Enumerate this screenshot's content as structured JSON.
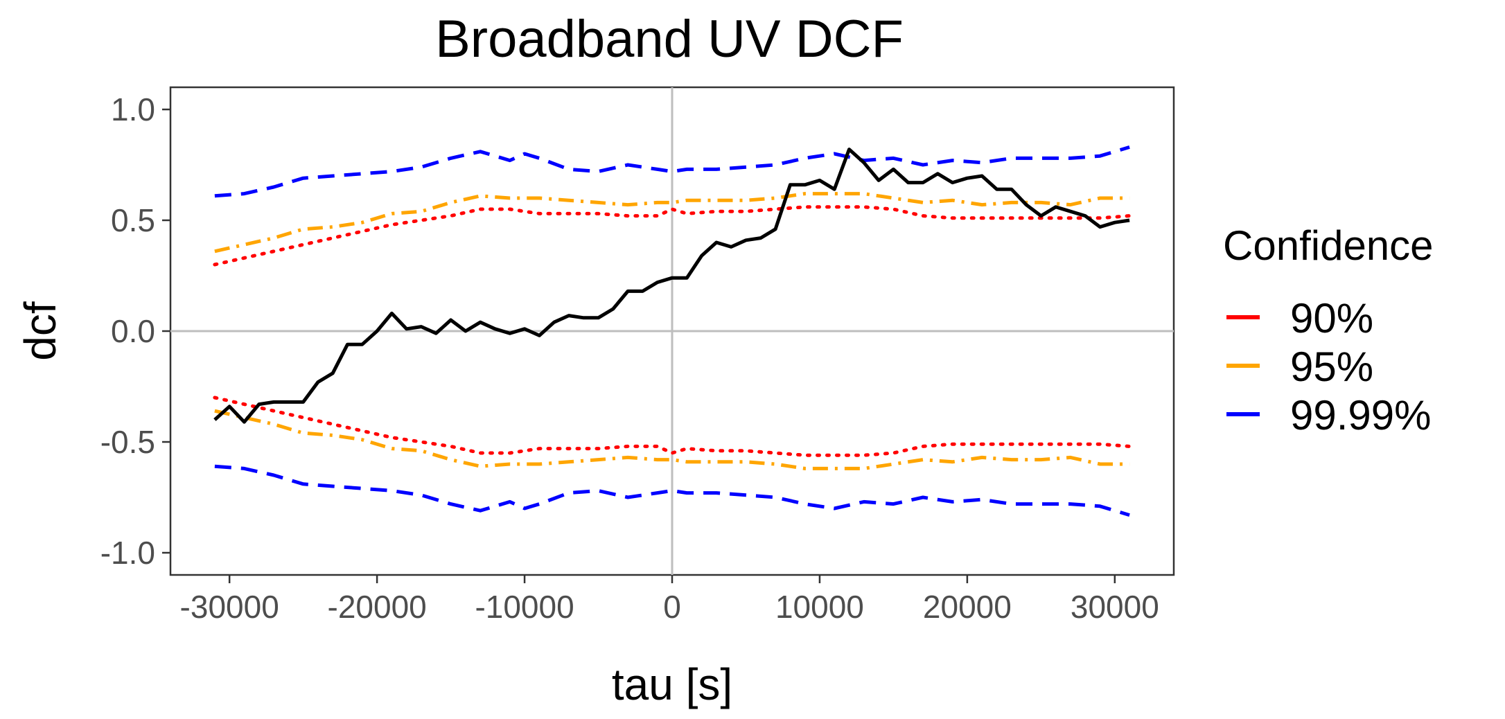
{
  "chart_data": {
    "type": "line",
    "title": "Broadband UV DCF",
    "xlabel": "tau [s]",
    "ylabel": "dcf",
    "xlim": [
      -34000,
      34000
    ],
    "ylim": [
      -1.1,
      1.1
    ],
    "xticks": [
      -30000,
      -20000,
      -10000,
      0,
      10000,
      20000,
      30000
    ],
    "xtick_labels": [
      "-30000",
      "-20000",
      "-10000",
      "0",
      "10000",
      "20000",
      "30000"
    ],
    "yticks": [
      1.0,
      0.5,
      0.0,
      -0.5,
      -1.0
    ],
    "ytick_labels": [
      "1.0",
      "0.5",
      "0.0",
      "-0.5",
      "-1.0"
    ],
    "grid": false,
    "reference_lines": {
      "x": 0,
      "y": 0,
      "color": "#bebebe"
    },
    "legend": {
      "title": "Confidence",
      "position": "right",
      "entries": [
        {
          "label": "90%",
          "color": "#ff0000"
        },
        {
          "label": "95%",
          "color": "#ffa500"
        },
        {
          "label": "99.99%",
          "color": "#0000ff"
        }
      ]
    },
    "series": [
      {
        "color": "#000000",
        "line_style": "solid",
        "x": [
          -31000,
          -30000,
          -29000,
          -28000,
          -27000,
          -26000,
          -25000,
          -24000,
          -23000,
          -22000,
          -21000,
          -20000,
          -19000,
          -18000,
          -17000,
          -16000,
          -15000,
          -14000,
          -13000,
          -12000,
          -11000,
          -10000,
          -9000,
          -8000,
          -7000,
          -6000,
          -5000,
          -4000,
          -3000,
          -2000,
          -1000,
          0,
          1000,
          2000,
          3000,
          4000,
          5000,
          6000,
          7000,
          8000,
          9000,
          10000,
          11000,
          12000,
          13000,
          14000,
          15000,
          16000,
          17000,
          18000,
          19000,
          20000,
          21000,
          22000,
          23000,
          24000,
          25000,
          26000,
          27000,
          28000,
          29000,
          30000,
          31000
        ],
        "y": [
          -0.4,
          -0.34,
          -0.41,
          -0.33,
          -0.32,
          -0.32,
          -0.32,
          -0.23,
          -0.19,
          -0.06,
          -0.06,
          0.0,
          0.08,
          0.01,
          0.02,
          -0.01,
          0.05,
          0.0,
          0.04,
          0.01,
          -0.01,
          0.01,
          -0.02,
          0.04,
          0.07,
          0.06,
          0.06,
          0.1,
          0.18,
          0.18,
          0.22,
          0.24,
          0.24,
          0.34,
          0.4,
          0.38,
          0.41,
          0.42,
          0.46,
          0.66,
          0.66,
          0.68,
          0.64,
          0.82,
          0.76,
          0.68,
          0.73,
          0.67,
          0.67,
          0.71,
          0.67,
          0.69,
          0.7,
          0.64,
          0.64,
          0.57,
          0.52,
          0.56,
          0.54,
          0.52,
          0.47,
          0.49,
          0.5
        ]
      },
      {
        "name": "90%",
        "color": "#ff0000",
        "line_style": "dotted",
        "x": [
          -31000,
          -29000,
          -27000,
          -25000,
          -23000,
          -21000,
          -19000,
          -17000,
          -15000,
          -13000,
          -11000,
          -9000,
          -7000,
          -5000,
          -3000,
          -1000,
          0,
          1000,
          3000,
          5000,
          7000,
          9000,
          11000,
          13000,
          15000,
          17000,
          19000,
          21000,
          23000,
          25000,
          27000,
          29000,
          31000
        ],
        "y_upper": [
          0.3,
          0.33,
          0.36,
          0.39,
          0.42,
          0.45,
          0.48,
          0.5,
          0.52,
          0.55,
          0.55,
          0.53,
          0.53,
          0.53,
          0.52,
          0.52,
          0.55,
          0.53,
          0.54,
          0.54,
          0.55,
          0.56,
          0.56,
          0.56,
          0.55,
          0.52,
          0.51,
          0.51,
          0.51,
          0.51,
          0.51,
          0.51,
          0.52
        ],
        "y_lower": [
          -0.3,
          -0.33,
          -0.36,
          -0.39,
          -0.42,
          -0.45,
          -0.48,
          -0.5,
          -0.52,
          -0.55,
          -0.55,
          -0.53,
          -0.53,
          -0.53,
          -0.52,
          -0.52,
          -0.55,
          -0.53,
          -0.54,
          -0.54,
          -0.55,
          -0.56,
          -0.56,
          -0.56,
          -0.55,
          -0.52,
          -0.51,
          -0.51,
          -0.51,
          -0.51,
          -0.51,
          -0.51,
          -0.52
        ]
      },
      {
        "name": "95%",
        "color": "#ffa500",
        "line_style": "dashdot",
        "x": [
          -31000,
          -29000,
          -27000,
          -25000,
          -23000,
          -21000,
          -19000,
          -17000,
          -15000,
          -13000,
          -11000,
          -9000,
          -7000,
          -5000,
          -3000,
          -1000,
          0,
          1000,
          3000,
          5000,
          7000,
          9000,
          11000,
          13000,
          15000,
          17000,
          19000,
          21000,
          23000,
          25000,
          27000,
          29000,
          31000
        ],
        "y_upper": [
          0.36,
          0.39,
          0.42,
          0.46,
          0.47,
          0.49,
          0.53,
          0.54,
          0.58,
          0.61,
          0.6,
          0.6,
          0.59,
          0.58,
          0.57,
          0.58,
          0.58,
          0.59,
          0.59,
          0.59,
          0.6,
          0.62,
          0.62,
          0.62,
          0.6,
          0.58,
          0.59,
          0.57,
          0.58,
          0.58,
          0.57,
          0.6,
          0.6
        ],
        "y_lower": [
          -0.36,
          -0.39,
          -0.42,
          -0.46,
          -0.47,
          -0.49,
          -0.53,
          -0.54,
          -0.58,
          -0.61,
          -0.6,
          -0.6,
          -0.59,
          -0.58,
          -0.57,
          -0.58,
          -0.58,
          -0.59,
          -0.59,
          -0.59,
          -0.6,
          -0.62,
          -0.62,
          -0.62,
          -0.6,
          -0.58,
          -0.59,
          -0.57,
          -0.58,
          -0.58,
          -0.57,
          -0.6,
          -0.6
        ]
      },
      {
        "name": "99.99%",
        "color": "#0000ff",
        "line_style": "dashed",
        "x": [
          -31000,
          -29000,
          -27000,
          -25000,
          -23000,
          -21000,
          -19000,
          -17000,
          -15000,
          -13000,
          -11000,
          -10000,
          -9000,
          -7000,
          -5000,
          -3000,
          -1000,
          0,
          1000,
          3000,
          5000,
          7000,
          9000,
          11000,
          13000,
          15000,
          17000,
          19000,
          21000,
          23000,
          25000,
          27000,
          29000,
          31000
        ],
        "y_upper": [
          0.61,
          0.62,
          0.65,
          0.69,
          0.7,
          0.71,
          0.72,
          0.74,
          0.78,
          0.81,
          0.77,
          0.8,
          0.78,
          0.73,
          0.72,
          0.75,
          0.73,
          0.72,
          0.73,
          0.73,
          0.74,
          0.75,
          0.78,
          0.8,
          0.77,
          0.78,
          0.75,
          0.77,
          0.76,
          0.78,
          0.78,
          0.78,
          0.79,
          0.83
        ],
        "y_lower": [
          -0.61,
          -0.62,
          -0.65,
          -0.69,
          -0.7,
          -0.71,
          -0.72,
          -0.74,
          -0.78,
          -0.81,
          -0.77,
          -0.8,
          -0.78,
          -0.73,
          -0.72,
          -0.75,
          -0.73,
          -0.72,
          -0.73,
          -0.73,
          -0.74,
          -0.75,
          -0.78,
          -0.8,
          -0.77,
          -0.78,
          -0.75,
          -0.77,
          -0.76,
          -0.78,
          -0.78,
          -0.78,
          -0.79,
          -0.83
        ]
      }
    ]
  }
}
